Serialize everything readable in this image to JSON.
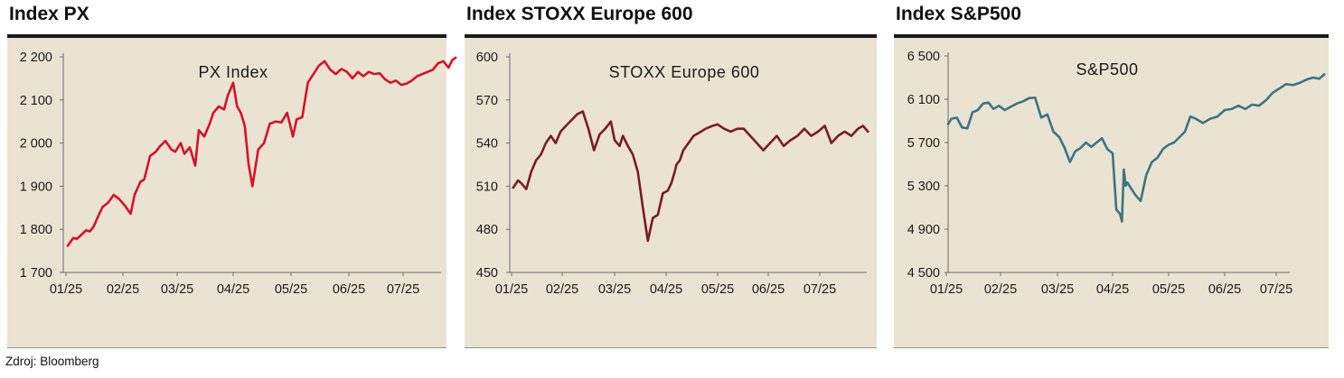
{
  "source_label": "Zdroj: Bloomberg",
  "colors": {
    "panel_background": "#ebe3d2",
    "axis": "#6b6b6b"
  },
  "chart_data": [
    {
      "type": "line",
      "title": "Index PX",
      "subtitle": "PX Index",
      "x_tick_labels": [
        "01/25",
        "02/25",
        "03/25",
        "04/25",
        "05/25",
        "06/25",
        "07/25"
      ],
      "y_ticks": [
        1700,
        1800,
        1900,
        2000,
        2100,
        2200
      ],
      "y_tick_labels": [
        "1 700",
        "1 800",
        "1 900",
        "2 000",
        "2 100",
        "2 200"
      ],
      "ylim": [
        1700,
        2200
      ],
      "grid": false,
      "series": [
        {
          "color": "#d7102b",
          "x": [
            "2025-01-02",
            "2025-01-05",
            "2025-01-07",
            "2025-01-09",
            "2025-01-12",
            "2025-01-14",
            "2025-01-16",
            "2025-01-19",
            "2025-01-21",
            "2025-01-24",
            "2025-01-27",
            "2025-01-30",
            "2025-02-02",
            "2025-02-05",
            "2025-02-07",
            "2025-02-10",
            "2025-02-12",
            "2025-02-15",
            "2025-02-18",
            "2025-02-20",
            "2025-02-23",
            "2025-02-26",
            "2025-02-28",
            "2025-03-03",
            "2025-03-05",
            "2025-03-08",
            "2025-03-11",
            "2025-03-13",
            "2025-03-16",
            "2025-03-19",
            "2025-03-21",
            "2025-03-24",
            "2025-03-27",
            "2025-03-29",
            "2025-04-01",
            "2025-04-03",
            "2025-04-05",
            "2025-04-07",
            "2025-04-09",
            "2025-04-11",
            "2025-04-14",
            "2025-04-17",
            "2025-04-20",
            "2025-04-23",
            "2025-04-26",
            "2025-04-29",
            "2025-05-02",
            "2025-05-04",
            "2025-05-07",
            "2025-05-10",
            "2025-05-13",
            "2025-05-16",
            "2025-05-19",
            "2025-05-22",
            "2025-05-25",
            "2025-05-28",
            "2025-05-31",
            "2025-06-03",
            "2025-06-06",
            "2025-06-09",
            "2025-06-12",
            "2025-06-15",
            "2025-06-18",
            "2025-06-21",
            "2025-06-24",
            "2025-06-27",
            "2025-06-30",
            "2025-07-03",
            "2025-07-06",
            "2025-07-09",
            "2025-07-12",
            "2025-07-15",
            "2025-07-18",
            "2025-07-21",
            "2025-07-24",
            "2025-07-27",
            "2025-07-29",
            "2025-07-31"
          ],
          "values": [
            1762,
            1780,
            1778,
            1786,
            1798,
            1795,
            1806,
            1835,
            1852,
            1862,
            1880,
            1870,
            1855,
            1836,
            1880,
            1910,
            1916,
            1970,
            1980,
            1992,
            2005,
            1985,
            1980,
            2000,
            1975,
            1990,
            1948,
            2030,
            2015,
            2045,
            2070,
            2085,
            2078,
            2110,
            2140,
            2085,
            2070,
            2040,
            1950,
            1900,
            1985,
            2000,
            2045,
            2050,
            2048,
            2070,
            2015,
            2055,
            2060,
            2140,
            2160,
            2180,
            2190,
            2170,
            2160,
            2172,
            2165,
            2150,
            2165,
            2155,
            2165,
            2160,
            2162,
            2148,
            2140,
            2145,
            2135,
            2138,
            2145,
            2155,
            2160,
            2165,
            2170,
            2185,
            2190,
            2175,
            2192,
            2198
          ]
        }
      ]
    },
    {
      "type": "line",
      "title": "Index STOXX Europe 600",
      "subtitle": "STOXX Europe 600",
      "x_tick_labels": [
        "01/25",
        "02/25",
        "03/25",
        "04/25",
        "05/25",
        "06/25",
        "07/25"
      ],
      "y_ticks": [
        450,
        480,
        510,
        540,
        570,
        600
      ],
      "y_tick_labels": [
        "450",
        "480",
        "510",
        "540",
        "570",
        "600"
      ],
      "ylim": [
        450,
        600
      ],
      "grid": false,
      "series": [
        {
          "color": "#7a1c24",
          "x": [
            "2025-01-02",
            "2025-01-05",
            "2025-01-07",
            "2025-01-10",
            "2025-01-13",
            "2025-01-16",
            "2025-01-19",
            "2025-01-22",
            "2025-01-25",
            "2025-01-28",
            "2025-01-31",
            "2025-02-03",
            "2025-02-06",
            "2025-02-09",
            "2025-02-12",
            "2025-02-15",
            "2025-02-18",
            "2025-02-21",
            "2025-02-24",
            "2025-02-27",
            "2025-03-01",
            "2025-03-04",
            "2025-03-06",
            "2025-03-09",
            "2025-03-12",
            "2025-03-15",
            "2025-03-18",
            "2025-03-21",
            "2025-03-24",
            "2025-03-27",
            "2025-03-30",
            "2025-04-02",
            "2025-04-04",
            "2025-04-06",
            "2025-04-07",
            "2025-04-09",
            "2025-04-11",
            "2025-04-14",
            "2025-04-17",
            "2025-04-20",
            "2025-04-24",
            "2025-04-28",
            "2025-05-01",
            "2025-05-05",
            "2025-05-09",
            "2025-05-13",
            "2025-05-17",
            "2025-05-21",
            "2025-05-25",
            "2025-05-29",
            "2025-06-02",
            "2025-06-06",
            "2025-06-10",
            "2025-06-14",
            "2025-06-18",
            "2025-06-22",
            "2025-06-26",
            "2025-06-30",
            "2025-07-04",
            "2025-07-08",
            "2025-07-12",
            "2025-07-16",
            "2025-07-20",
            "2025-07-24",
            "2025-07-27",
            "2025-07-30"
          ],
          "values": [
            509,
            514,
            512,
            508,
            520,
            528,
            532,
            540,
            545,
            540,
            548,
            552,
            556,
            560,
            562,
            550,
            535,
            546,
            550,
            555,
            542,
            538,
            545,
            538,
            532,
            520,
            495,
            472,
            488,
            490,
            505,
            507,
            512,
            520,
            525,
            528,
            535,
            540,
            545,
            547,
            550,
            552,
            553,
            550,
            548,
            550,
            550,
            545,
            540,
            535,
            540,
            545,
            538,
            542,
            545,
            550,
            545,
            548,
            552,
            540,
            545,
            548,
            545,
            550,
            552,
            548
          ]
        }
      ]
    },
    {
      "type": "line",
      "title": "Index S&P500",
      "subtitle": "S&P500",
      "x_tick_labels": [
        "01/25",
        "02/25",
        "03/25",
        "04/25",
        "05/25",
        "06/25",
        "07/25"
      ],
      "y_ticks": [
        4500,
        4900,
        5300,
        5700,
        6100,
        6500
      ],
      "y_tick_labels": [
        "4 500",
        "4 900",
        "5 300",
        "5 700",
        "6 100",
        "6 500"
      ],
      "ylim": [
        4500,
        6500
      ],
      "grid": false,
      "series": [
        {
          "color": "#3a7582",
          "x": [
            "2025-01-02",
            "2025-01-04",
            "2025-01-07",
            "2025-01-10",
            "2025-01-13",
            "2025-01-16",
            "2025-01-19",
            "2025-01-22",
            "2025-01-25",
            "2025-01-28",
            "2025-01-31",
            "2025-02-03",
            "2025-02-06",
            "2025-02-09",
            "2025-02-12",
            "2025-02-15",
            "2025-02-18",
            "2025-02-21",
            "2025-02-24",
            "2025-02-27",
            "2025-03-02",
            "2025-03-05",
            "2025-03-08",
            "2025-03-11",
            "2025-03-14",
            "2025-03-17",
            "2025-03-20",
            "2025-03-23",
            "2025-03-26",
            "2025-03-29",
            "2025-04-01",
            "2025-04-03",
            "2025-04-05",
            "2025-04-06",
            "2025-04-07",
            "2025-04-08",
            "2025-04-09",
            "2025-04-10",
            "2025-04-13",
            "2025-04-16",
            "2025-04-19",
            "2025-04-22",
            "2025-04-25",
            "2025-04-28",
            "2025-05-01",
            "2025-05-04",
            "2025-05-07",
            "2025-05-10",
            "2025-05-13",
            "2025-05-16",
            "2025-05-20",
            "2025-05-24",
            "2025-05-28",
            "2025-06-01",
            "2025-06-05",
            "2025-06-09",
            "2025-06-13",
            "2025-06-17",
            "2025-06-21",
            "2025-06-25",
            "2025-06-29",
            "2025-07-03",
            "2025-07-07",
            "2025-07-11",
            "2025-07-15",
            "2025-07-19",
            "2025-07-23",
            "2025-07-27",
            "2025-07-30"
          ],
          "values": [
            5870,
            5920,
            5930,
            5840,
            5830,
            5980,
            6000,
            6060,
            6070,
            6010,
            6040,
            6000,
            6030,
            6060,
            6080,
            6110,
            6115,
            5930,
            5960,
            5800,
            5750,
            5650,
            5520,
            5620,
            5650,
            5700,
            5660,
            5700,
            5740,
            5640,
            5600,
            5080,
            5040,
            4970,
            5450,
            5300,
            5330,
            5300,
            5220,
            5160,
            5400,
            5520,
            5560,
            5640,
            5680,
            5700,
            5750,
            5800,
            5940,
            5920,
            5880,
            5920,
            5940,
            6000,
            6010,
            6040,
            6010,
            6050,
            6040,
            6090,
            6160,
            6200,
            6240,
            6230,
            6250,
            6280,
            6300,
            6290,
            6330
          ]
        }
      ]
    }
  ]
}
